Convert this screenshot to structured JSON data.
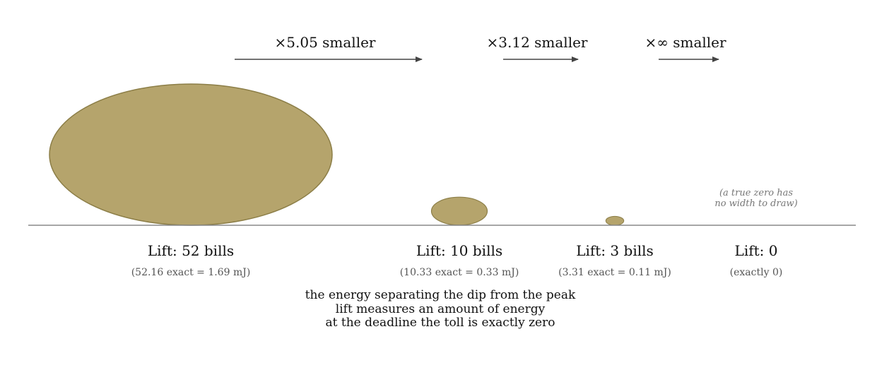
{
  "colors": {
    "bubble_fill": "#b5a46c",
    "bubble_stroke": "#8c7e47",
    "baseline": "#888888",
    "arrow": "#444444"
  },
  "ratios": [
    {
      "text": "×5.05 smaller"
    },
    {
      "text": "×3.12 smaller"
    },
    {
      "text": "×∞ smaller"
    }
  ],
  "bubbles": [
    {
      "label": "Lift: 52 bills",
      "sub": "(52.16 exact = 1.69 mJ)",
      "value": 52.16
    },
    {
      "label": "Lift: 10 bills",
      "sub": "(10.33 exact = 0.33 mJ)",
      "value": 10.33
    },
    {
      "label": "Lift: 3 bills",
      "sub": "(3.31 exact = 0.11 mJ)",
      "value": 3.31
    },
    {
      "label": "Lift: 0",
      "sub": "(exactly 0)",
      "value": 0
    }
  ],
  "zero_note": [
    "(a true zero has",
    "no width to draw)"
  ],
  "caption": [
    "the energy separating the dip from the peak",
    "lift measures an amount of energy",
    "at the deadline the toll is exactly zero"
  ]
}
